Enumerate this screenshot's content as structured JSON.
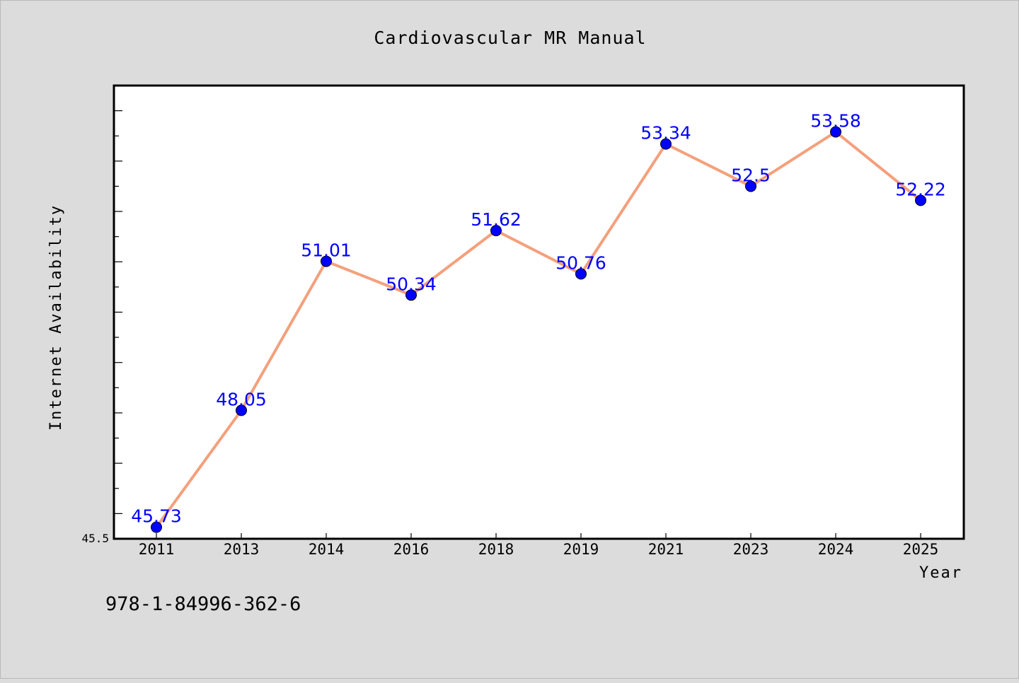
{
  "chart_data": {
    "type": "line",
    "title": "Cardiovascular MR Manual",
    "xlabel": "Year",
    "ylabel": "Internet Availability",
    "categories": [
      "2011",
      "2013",
      "2014",
      "2016",
      "2018",
      "2019",
      "2021",
      "2023",
      "2024",
      "2025"
    ],
    "series": [
      {
        "values": [
          45.73,
          48.05,
          51.01,
          50.34,
          51.62,
          50.76,
          53.34,
          52.5,
          53.58,
          52.22
        ],
        "labels": [
          "45.73",
          "48.05",
          "51.01",
          "50.34",
          "51.62",
          "50.76",
          "53.34",
          "52.5",
          "53.58",
          "52.22"
        ]
      }
    ],
    "ylim": [
      45.5,
      54.5
    ],
    "y_tick_labels": [
      "45.5"
    ],
    "grid": false,
    "legend": "none",
    "colors": {
      "line": "#f4a07c",
      "marker": "#0000ff",
      "data_label": "#0000ff",
      "plot_background": "#ffffff",
      "page_background": "#dcdcdc"
    }
  },
  "footer": {
    "isbn": "978-1-84996-362-6"
  }
}
